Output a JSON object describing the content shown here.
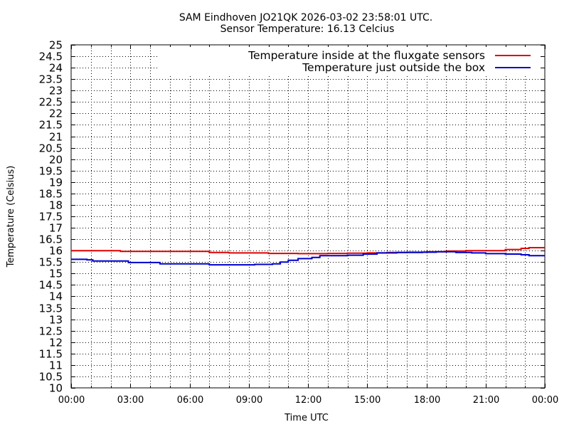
{
  "chart_data": {
    "type": "line",
    "title": "SAM Eindhoven JO21QK 2026-03-02 23:58:01 UTC.",
    "subtitle": "Sensor Temperature: 16.13 Celcius",
    "xlabel": "Time UTC",
    "ylabel": "Temperature (Celsius)",
    "xlim": [
      0,
      24
    ],
    "ylim": [
      10,
      25
    ],
    "x_ticks": [
      "00:00",
      "03:00",
      "06:00",
      "09:00",
      "12:00",
      "15:00",
      "18:00",
      "21:00",
      "00:00"
    ],
    "y_ticks": [
      "10",
      "10.5",
      "11",
      "11.5",
      "12",
      "12.5",
      "13",
      "13.5",
      "14",
      "14.5",
      "15",
      "15.5",
      "16",
      "16.5",
      "17",
      "17.5",
      "18",
      "18.5",
      "19",
      "19.5",
      "20",
      "20.5",
      "21",
      "21.5",
      "22",
      "22.5",
      "23",
      "23.5",
      "24",
      "24.5",
      "25"
    ],
    "grid": true,
    "legend_position": "top-right",
    "series": [
      {
        "name": "Temperature inside at the fluxgate sensors",
        "color": "#e00000",
        "points": [
          [
            0,
            16.0
          ],
          [
            1.5,
            16.0
          ],
          [
            2.5,
            15.97
          ],
          [
            5,
            15.97
          ],
          [
            6.7,
            15.97
          ],
          [
            7,
            15.92
          ],
          [
            8,
            15.9
          ],
          [
            10,
            15.88
          ],
          [
            11.5,
            15.87
          ],
          [
            12,
            15.87
          ],
          [
            13,
            15.88
          ],
          [
            14,
            15.89
          ],
          [
            15,
            15.9
          ],
          [
            16,
            15.92
          ],
          [
            17,
            15.93
          ],
          [
            18,
            15.95
          ],
          [
            19,
            15.98
          ],
          [
            20,
            16.0
          ],
          [
            21,
            16.0
          ],
          [
            22,
            16.05
          ],
          [
            22.8,
            16.1
          ],
          [
            23.2,
            16.13
          ],
          [
            24,
            16.13
          ]
        ]
      },
      {
        "name": "Temperature just outside the box",
        "color": "#0000cc",
        "points": [
          [
            0,
            15.62
          ],
          [
            0.8,
            15.6
          ],
          [
            1.1,
            15.55
          ],
          [
            2.7,
            15.55
          ],
          [
            2.9,
            15.48
          ],
          [
            4.4,
            15.48
          ],
          [
            4.5,
            15.42
          ],
          [
            6.7,
            15.42
          ],
          [
            7.0,
            15.38
          ],
          [
            8.7,
            15.38
          ],
          [
            9.3,
            15.4
          ],
          [
            10.2,
            15.42
          ],
          [
            10.6,
            15.5
          ],
          [
            11.0,
            15.58
          ],
          [
            11.5,
            15.65
          ],
          [
            12.2,
            15.7
          ],
          [
            12.6,
            15.78
          ],
          [
            14.0,
            15.8
          ],
          [
            14.8,
            15.85
          ],
          [
            15.5,
            15.9
          ],
          [
            16.5,
            15.92
          ],
          [
            17.3,
            15.92
          ],
          [
            17.8,
            15.93
          ],
          [
            18.5,
            15.95
          ],
          [
            19.5,
            15.92
          ],
          [
            20.3,
            15.9
          ],
          [
            21.0,
            15.87
          ],
          [
            22.0,
            15.85
          ],
          [
            22.8,
            15.82
          ],
          [
            23.2,
            15.78
          ],
          [
            24,
            15.78
          ]
        ]
      }
    ]
  }
}
